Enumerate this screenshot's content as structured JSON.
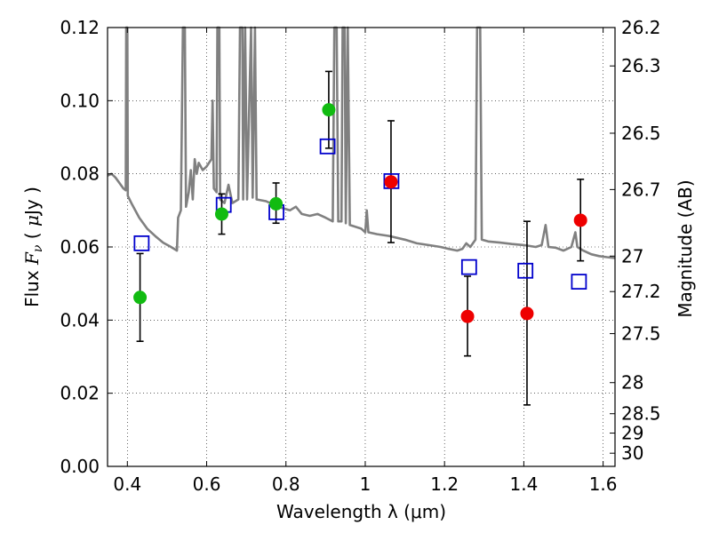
{
  "chart_data": {
    "type": "scatter",
    "xlabel": "Wavelength  λ (μm)",
    "ylabel": {
      "prefix": "Flux  ",
      "symbol": "F",
      "subscript": "ν",
      "unit_open": "  ( ",
      "unit_mu": "μ",
      "unit_rest": "Jy )"
    },
    "y2label": "Magnitude (AB)",
    "xlim": [
      0.35,
      1.63
    ],
    "ylim": [
      0.0,
      0.12
    ],
    "x_ticks": [
      0.4,
      0.6,
      0.8,
      1.0,
      1.2,
      1.4,
      1.6
    ],
    "x_tick_labels": [
      "0.4",
      "0.6",
      "0.8",
      "1",
      "1.2",
      "1.4",
      "1.6"
    ],
    "y_ticks": [
      0.0,
      0.02,
      0.04,
      0.06,
      0.08,
      0.1,
      0.12
    ],
    "y_tick_labels": [
      "0.00",
      "0.02",
      "0.04",
      "0.06",
      "0.08",
      "0.10",
      "0.12"
    ],
    "right_ticks": [
      {
        "label": "26.2",
        "flux": 0.12
      },
      {
        "label": "26.3",
        "flux": 0.1095
      },
      {
        "label": "26.5",
        "flux": 0.0911
      },
      {
        "label": "26.7",
        "flux": 0.0757
      },
      {
        "label": "27",
        "flux": 0.0575
      },
      {
        "label": "27.2",
        "flux": 0.0478
      },
      {
        "label": "27.5",
        "flux": 0.0363
      },
      {
        "label": "28",
        "flux": 0.0229
      },
      {
        "label": "28.5",
        "flux": 0.0144
      },
      {
        "label": "29",
        "flux": 0.0091
      },
      {
        "label": "30",
        "flux": 0.0036
      }
    ],
    "grid": true,
    "grid_style": "dotted",
    "colors": {
      "spectrum": "#808080",
      "optical_points": "#11bb11",
      "nir_points": "#ee0000",
      "model_squares": "#0000cc",
      "errorbars": "#000000"
    },
    "spectrum": [
      [
        0.35,
        0.0795
      ],
      [
        0.36,
        0.08
      ],
      [
        0.37,
        0.079
      ],
      [
        0.38,
        0.0775
      ],
      [
        0.39,
        0.076
      ],
      [
        0.396,
        0.0755
      ],
      [
        0.397,
        0.12
      ],
      [
        0.4,
        0.12
      ],
      [
        0.401,
        0.074
      ],
      [
        0.41,
        0.072
      ],
      [
        0.43,
        0.068
      ],
      [
        0.45,
        0.065
      ],
      [
        0.47,
        0.063
      ],
      [
        0.49,
        0.0612
      ],
      [
        0.51,
        0.06
      ],
      [
        0.525,
        0.059
      ],
      [
        0.528,
        0.068
      ],
      [
        0.535,
        0.07
      ],
      [
        0.54,
        0.12
      ],
      [
        0.545,
        0.12
      ],
      [
        0.548,
        0.071
      ],
      [
        0.555,
        0.075
      ],
      [
        0.56,
        0.081
      ],
      [
        0.565,
        0.073
      ],
      [
        0.57,
        0.084
      ],
      [
        0.575,
        0.08
      ],
      [
        0.58,
        0.083
      ],
      [
        0.59,
        0.081
      ],
      [
        0.6,
        0.082
      ],
      [
        0.612,
        0.084
      ],
      [
        0.615,
        0.1
      ],
      [
        0.618,
        0.076
      ],
      [
        0.625,
        0.075
      ],
      [
        0.627,
        0.12
      ],
      [
        0.632,
        0.12
      ],
      [
        0.634,
        0.073
      ],
      [
        0.645,
        0.072
      ],
      [
        0.655,
        0.077
      ],
      [
        0.665,
        0.072
      ],
      [
        0.68,
        0.073
      ],
      [
        0.684,
        0.12
      ],
      [
        0.69,
        0.12
      ],
      [
        0.692,
        0.073
      ],
      [
        0.697,
        0.12
      ],
      [
        0.702,
        0.073
      ],
      [
        0.712,
        0.12
      ],
      [
        0.716,
        0.0735
      ],
      [
        0.722,
        0.12
      ],
      [
        0.726,
        0.073
      ],
      [
        0.75,
        0.0725
      ],
      [
        0.78,
        0.071
      ],
      [
        0.81,
        0.07
      ],
      [
        0.825,
        0.071
      ],
      [
        0.84,
        0.069
      ],
      [
        0.86,
        0.0685
      ],
      [
        0.88,
        0.069
      ],
      [
        0.9,
        0.068
      ],
      [
        0.918,
        0.067
      ],
      [
        0.922,
        0.12
      ],
      [
        0.928,
        0.12
      ],
      [
        0.932,
        0.067
      ],
      [
        0.94,
        0.067
      ],
      [
        0.943,
        0.12
      ],
      [
        0.948,
        0.12
      ],
      [
        0.951,
        0.0665
      ],
      [
        0.956,
        0.12
      ],
      [
        0.961,
        0.066
      ],
      [
        0.99,
        0.065
      ],
      [
        1.0,
        0.064
      ],
      [
        1.004,
        0.07
      ],
      [
        1.008,
        0.064
      ],
      [
        1.03,
        0.0635
      ],
      [
        1.06,
        0.063
      ],
      [
        1.1,
        0.062
      ],
      [
        1.13,
        0.061
      ],
      [
        1.16,
        0.0605
      ],
      [
        1.19,
        0.06
      ],
      [
        1.21,
        0.0595
      ],
      [
        1.232,
        0.059
      ],
      [
        1.245,
        0.0595
      ],
      [
        1.255,
        0.061
      ],
      [
        1.265,
        0.06
      ],
      [
        1.278,
        0.062
      ],
      [
        1.282,
        0.12
      ],
      [
        1.29,
        0.12
      ],
      [
        1.294,
        0.062
      ],
      [
        1.31,
        0.0615
      ],
      [
        1.34,
        0.0612
      ],
      [
        1.37,
        0.0608
      ],
      [
        1.4,
        0.0605
      ],
      [
        1.43,
        0.06
      ],
      [
        1.445,
        0.0605
      ],
      [
        1.455,
        0.066
      ],
      [
        1.462,
        0.06
      ],
      [
        1.48,
        0.0598
      ],
      [
        1.5,
        0.059
      ],
      [
        1.52,
        0.06
      ],
      [
        1.53,
        0.064
      ],
      [
        1.535,
        0.06
      ],
      [
        1.55,
        0.059
      ],
      [
        1.57,
        0.058
      ],
      [
        1.59,
        0.0575
      ],
      [
        1.61,
        0.0572
      ],
      [
        1.63,
        0.057
      ]
    ],
    "optical_points": [
      {
        "x": 0.432,
        "y": 0.0462,
        "err": [
          0.0342,
          0.0582
        ]
      },
      {
        "x": 0.638,
        "y": 0.069,
        "err": [
          0.0635,
          0.0745
        ]
      },
      {
        "x": 0.775,
        "y": 0.0718,
        "err": [
          0.0665,
          0.0775
        ]
      },
      {
        "x": 0.908,
        "y": 0.0975,
        "err": [
          0.087,
          0.108
        ]
      }
    ],
    "nir_points": [
      {
        "x": 1.065,
        "y": 0.0778,
        "err": [
          0.0612,
          0.0945
        ]
      },
      {
        "x": 1.258,
        "y": 0.041,
        "err": [
          0.0302,
          0.052
        ]
      },
      {
        "x": 1.408,
        "y": 0.0418,
        "err": [
          0.0168,
          0.067
        ]
      },
      {
        "x": 1.543,
        "y": 0.0673,
        "err": [
          0.0562,
          0.0785
        ]
      }
    ],
    "model_squares": [
      {
        "x": 0.436,
        "y": 0.061
      },
      {
        "x": 0.643,
        "y": 0.0715
      },
      {
        "x": 0.776,
        "y": 0.0695
      },
      {
        "x": 0.905,
        "y": 0.0875
      },
      {
        "x": 1.066,
        "y": 0.078
      },
      {
        "x": 1.262,
        "y": 0.0545
      },
      {
        "x": 1.404,
        "y": 0.0535
      },
      {
        "x": 1.539,
        "y": 0.0505
      }
    ]
  }
}
